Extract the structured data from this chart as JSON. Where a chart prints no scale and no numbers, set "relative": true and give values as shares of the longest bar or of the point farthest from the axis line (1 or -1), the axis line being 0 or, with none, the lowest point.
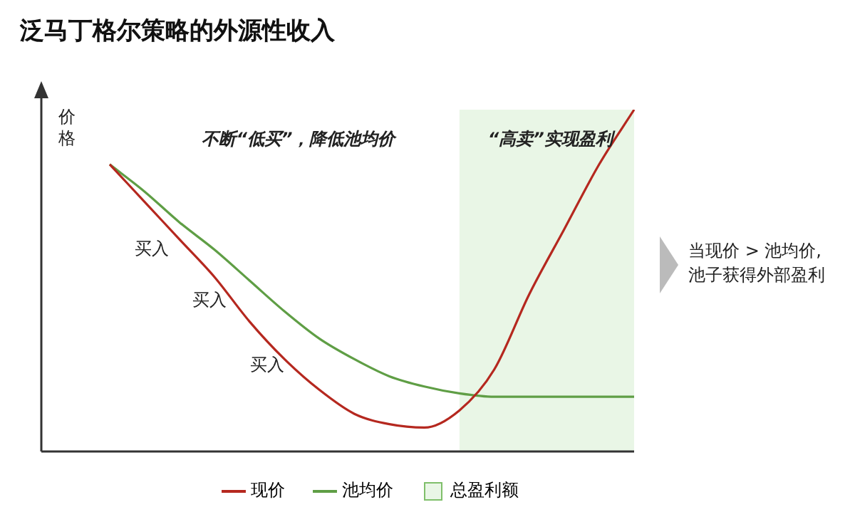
{
  "chart_data": {
    "type": "line",
    "title": "泛马丁格尔策略的外源性收入",
    "ylabel": "价格",
    "relative": true,
    "legend": "bottom",
    "tick_labels": false,
    "marker": "none",
    "categories": [
      null,
      null,
      null,
      null,
      null,
      null,
      null,
      null,
      null,
      null,
      null,
      null,
      null,
      null,
      null,
      null
    ],
    "series": [
      {
        "name": "现价",
        "color": "#b5281f",
        "values": [
          0.84,
          0.73,
          0.62,
          0.51,
          0.38,
          0.27,
          0.18,
          0.11,
          0.08,
          0.07,
          0.12,
          0.24,
          0.46,
          0.65,
          0.84,
          1
        ]
      },
      {
        "name": "池均价",
        "color": "#5f9e45",
        "values": [
          0.84,
          0.76,
          0.67,
          0.59,
          0.5,
          0.41,
          0.33,
          0.27,
          0.22,
          0.19,
          0.17,
          0.16,
          0.16,
          0.16,
          0.16,
          0.16
        ]
      },
      {
        "name": "总盈利额",
        "type": "area",
        "color": "#e9f6e6",
        "values": [
          null,
          null,
          null,
          null,
          null,
          null,
          null,
          null,
          null,
          null,
          1,
          1,
          1,
          1,
          1,
          1
        ]
      }
    ],
    "annotations": [
      "不断“低买”，降低池均价",
      "“高卖”实现盈利",
      "买入",
      "买入",
      "买入",
      "当现价 > 池均价,\n池子获得外部盈利"
    ]
  }
}
